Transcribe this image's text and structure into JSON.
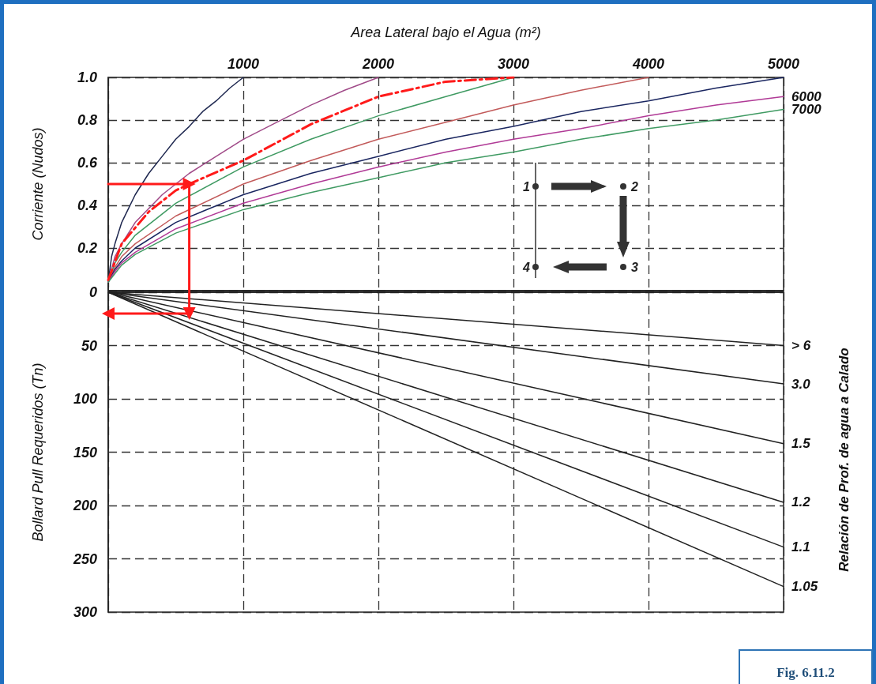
{
  "chart_data": [
    {
      "type": "line",
      "xlabel": "Area Lateral bajo el Agua (m²)",
      "ylabel": "Corriente (Nudos)",
      "xlim": [
        0,
        5000
      ],
      "xticks": [
        {
          "value": 0,
          "label": null
        },
        1000,
        2000,
        3000,
        4000,
        5000
      ],
      "ylim": [
        0,
        1
      ],
      "yticks": [
        {
          "value": 0,
          "label": null
        },
        0.2,
        0.4,
        0.6,
        0.8,
        {
          "value": 1,
          "label": "1.0"
        }
      ],
      "grid": true,
      "annotations": [
        "1",
        "2",
        "3",
        "4",
        "Fig. 6.11.2"
      ],
      "series": [
        {
          "color": "#1f2850",
          "x": [
            0,
            25,
            50,
            100,
            200,
            300,
            400,
            500,
            600,
            700,
            800,
            900,
            1000
          ],
          "values": [
            0.04,
            0.16,
            0.22,
            0.32,
            0.45,
            0.55,
            0.63,
            0.71,
            0.77,
            0.84,
            0.89,
            0.95,
            1.0
          ]
        },
        {
          "color": "#a04a88",
          "x": [
            0,
            50,
            100,
            200,
            400,
            600,
            800,
            1000,
            1250,
            1500,
            1750,
            2000
          ],
          "values": [
            0.04,
            0.16,
            0.22,
            0.32,
            0.45,
            0.55,
            0.63,
            0.71,
            0.79,
            0.87,
            0.94,
            1.0
          ]
        },
        {
          "color": "#3f9a62",
          "x": [
            0,
            50,
            100,
            200,
            500,
            1000,
            1500,
            2000,
            2500,
            3000
          ],
          "values": [
            0.04,
            0.13,
            0.18,
            0.26,
            0.41,
            0.58,
            0.71,
            0.82,
            0.91,
            1.0
          ]
        },
        {
          "color": "#c25a5a",
          "x": [
            0,
            50,
            100,
            200,
            500,
            1000,
            1500,
            2000,
            2500,
            3000,
            3500,
            4000
          ],
          "values": [
            0.04,
            0.11,
            0.16,
            0.22,
            0.35,
            0.5,
            0.61,
            0.71,
            0.79,
            0.87,
            0.94,
            1.0
          ]
        },
        {
          "color": "#1a2660",
          "x": [
            0,
            50,
            100,
            200,
            500,
            1000,
            1500,
            2000,
            2500,
            3000,
            3500,
            4000,
            4500,
            5000
          ],
          "values": [
            0.04,
            0.1,
            0.14,
            0.2,
            0.32,
            0.45,
            0.55,
            0.63,
            0.71,
            0.77,
            0.84,
            0.89,
            0.95,
            1.0
          ]
        },
        {
          "name": "6000",
          "color": "#b03a96",
          "x": [
            0,
            50,
            100,
            200,
            500,
            1000,
            1500,
            2000,
            2500,
            3000,
            3500,
            4000,
            4500,
            5000
          ],
          "values": [
            0.04,
            0.09,
            0.13,
            0.18,
            0.29,
            0.41,
            0.5,
            0.58,
            0.65,
            0.71,
            0.76,
            0.82,
            0.87,
            0.91
          ]
        },
        {
          "name": "7000",
          "color": "#3f9a62",
          "x": [
            0,
            50,
            100,
            200,
            500,
            1000,
            1500,
            2000,
            2500,
            3000,
            3500,
            4000,
            4500,
            5000
          ],
          "values": [
            0.04,
            0.08,
            0.12,
            0.17,
            0.27,
            0.38,
            0.46,
            0.53,
            0.6,
            0.65,
            0.71,
            0.76,
            0.8,
            0.85
          ]
        },
        {
          "color": "#ff1a1a",
          "line_style": "dashed",
          "x": [
            0,
            100,
            300,
            500,
            600,
            1000,
            1500,
            2000,
            2500,
            3000
          ],
          "values": [
            0.05,
            0.22,
            0.37,
            0.47,
            0.5,
            0.61,
            0.78,
            0.91,
            0.98,
            1.0
          ]
        },
        {
          "color": "#ff1a1a",
          "x": [
            0,
            600,
            600
          ],
          "values": [
            0.5,
            0.5,
            0
          ]
        }
      ]
    },
    {
      "type": "line",
      "ylabel": "Bollard Pull Requeridos (Tn)",
      "legend_title": "Relación de Prof. de agua a Calado",
      "xlim": [
        0,
        5000
      ],
      "xticks": [
        0,
        1000,
        2000,
        3000,
        4000,
        5000
      ],
      "ylim": [
        300,
        0
      ],
      "yticks": [
        0,
        50,
        100,
        150,
        200,
        250,
        300
      ],
      "grid": true,
      "tick_labels": "y",
      "series": [
        {
          "name": "> 6",
          "color": "#222222",
          "x": [
            0,
            5000
          ],
          "values": [
            0,
            50
          ]
        },
        {
          "name": "3.0",
          "color": "#222222",
          "x": [
            0,
            5000
          ],
          "values": [
            0,
            86
          ]
        },
        {
          "name": "1.5",
          "color": "#222222",
          "x": [
            0,
            5000
          ],
          "values": [
            0,
            142
          ]
        },
        {
          "name": "1.2",
          "color": "#222222",
          "x": [
            0,
            5000
          ],
          "values": [
            0,
            197
          ]
        },
        {
          "name": "1.1",
          "color": "#222222",
          "x": [
            0,
            5000
          ],
          "values": [
            0,
            239
          ]
        },
        {
          "name": "1.05",
          "color": "#222222",
          "x": [
            0,
            5000
          ],
          "values": [
            0,
            276
          ]
        },
        {
          "color": "#ff1a1a",
          "x": [
            600,
            600,
            0
          ],
          "values": [
            0,
            20,
            20
          ]
        }
      ]
    }
  ]
}
